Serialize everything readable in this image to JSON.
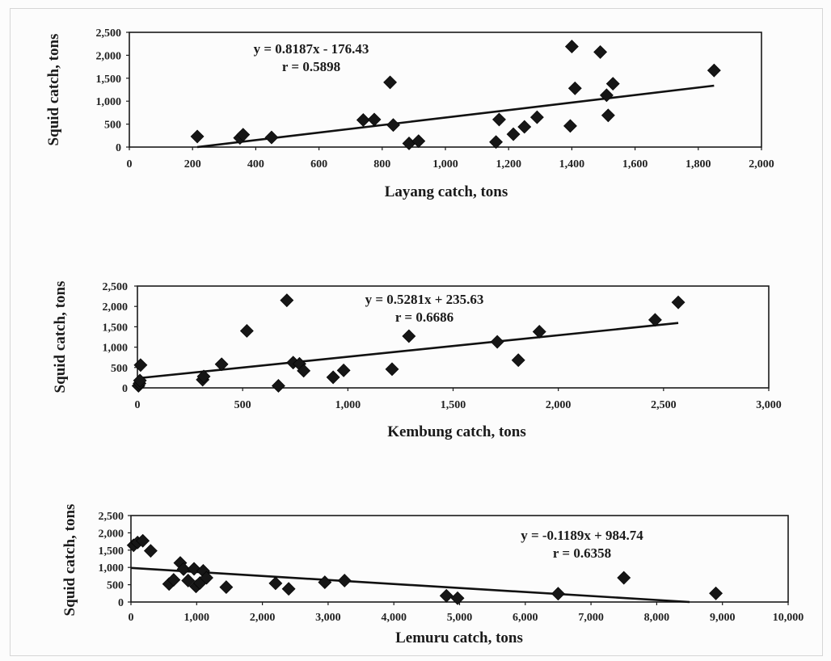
{
  "chart_data": [
    {
      "type": "scatter",
      "xlabel": "Layang catch, tons",
      "ylabel": "Squid catch, tons",
      "xlim": [
        0,
        2000
      ],
      "ylim": [
        0,
        2500
      ],
      "x_ticks": [
        "0",
        "200",
        "400",
        "600",
        "800",
        "1,000",
        "1,200",
        "1,400",
        "1,600",
        "1,800",
        "2,000"
      ],
      "y_ticks": [
        "0",
        "500",
        "1,000",
        "1,500",
        "2,000",
        "2,500"
      ],
      "annotation_lines": [
        "y = 0.8187x - 176.43",
        "r = 0.5898"
      ],
      "trendline": {
        "slope": 0.8187,
        "intercept": -176.43,
        "x_range": [
          215,
          1850
        ]
      },
      "points": [
        [
          215,
          230
        ],
        [
          350,
          200
        ],
        [
          360,
          270
        ],
        [
          450,
          210
        ],
        [
          740,
          590
        ],
        [
          775,
          600
        ],
        [
          825,
          1410
        ],
        [
          835,
          480
        ],
        [
          885,
          80
        ],
        [
          915,
          130
        ],
        [
          1160,
          110
        ],
        [
          1170,
          600
        ],
        [
          1215,
          280
        ],
        [
          1250,
          440
        ],
        [
          1290,
          650
        ],
        [
          1395,
          460
        ],
        [
          1400,
          2190
        ],
        [
          1410,
          1280
        ],
        [
          1490,
          2070
        ],
        [
          1510,
          1130
        ],
        [
          1515,
          690
        ],
        [
          1530,
          1380
        ],
        [
          1850,
          1670
        ]
      ]
    },
    {
      "type": "scatter",
      "xlabel": "Kembung catch, tons",
      "ylabel": "Squid catch, tons",
      "xlim": [
        0,
        3000
      ],
      "ylim": [
        0,
        2500
      ],
      "x_ticks": [
        "0",
        "500",
        "1,000",
        "1,500",
        "2,000",
        "2,500",
        "3,000"
      ],
      "y_ticks": [
        "0",
        "500",
        "1,000",
        "1,500",
        "2,000",
        "2,500"
      ],
      "annotation_lines": [
        "y = 0.5281x + 235.63",
        "r = 0.6686"
      ],
      "trendline": {
        "slope": 0.5281,
        "intercept": 235.63,
        "x_range": [
          0,
          2570
        ]
      },
      "points": [
        [
          5,
          50
        ],
        [
          10,
          110
        ],
        [
          12,
          180
        ],
        [
          15,
          560
        ],
        [
          310,
          200
        ],
        [
          315,
          280
        ],
        [
          400,
          580
        ],
        [
          520,
          1400
        ],
        [
          670,
          50
        ],
        [
          710,
          2150
        ],
        [
          740,
          620
        ],
        [
          770,
          590
        ],
        [
          790,
          420
        ],
        [
          930,
          260
        ],
        [
          980,
          430
        ],
        [
          1210,
          460
        ],
        [
          1290,
          1270
        ],
        [
          1710,
          1130
        ],
        [
          1810,
          680
        ],
        [
          1910,
          1380
        ],
        [
          2460,
          1670
        ],
        [
          2570,
          2100
        ]
      ]
    },
    {
      "type": "scatter",
      "xlabel": "Lemuru catch, tons",
      "ylabel": "Squid catch, tons",
      "xlim": [
        0,
        10000
      ],
      "ylim": [
        0,
        2500
      ],
      "x_ticks": [
        "0",
        "1,000",
        "2,000",
        "3,000",
        "4,000",
        "5,000",
        "6,000",
        "7,000",
        "8,000",
        "9,000",
        "10,000"
      ],
      "y_ticks": [
        "0",
        "500",
        "1,000",
        "1,500",
        "2,000",
        "2,500"
      ],
      "annotation_lines": [
        "y = -0.1189x + 984.74",
        "r = 0.6358"
      ],
      "trendline": {
        "slope": -0.1189,
        "intercept": 984.74,
        "x_range": [
          0,
          8500
        ]
      },
      "points": [
        [
          40,
          1640
        ],
        [
          100,
          1720
        ],
        [
          180,
          1770
        ],
        [
          300,
          1480
        ],
        [
          580,
          520
        ],
        [
          650,
          640
        ],
        [
          750,
          1130
        ],
        [
          800,
          950
        ],
        [
          870,
          620
        ],
        [
          960,
          960
        ],
        [
          990,
          450
        ],
        [
          1050,
          550
        ],
        [
          1100,
          900
        ],
        [
          1150,
          700
        ],
        [
          1450,
          430
        ],
        [
          2200,
          540
        ],
        [
          2400,
          380
        ],
        [
          2950,
          570
        ],
        [
          3250,
          620
        ],
        [
          4800,
          180
        ],
        [
          4970,
          110
        ],
        [
          6500,
          240
        ],
        [
          7500,
          700
        ],
        [
          8900,
          250
        ]
      ]
    }
  ]
}
